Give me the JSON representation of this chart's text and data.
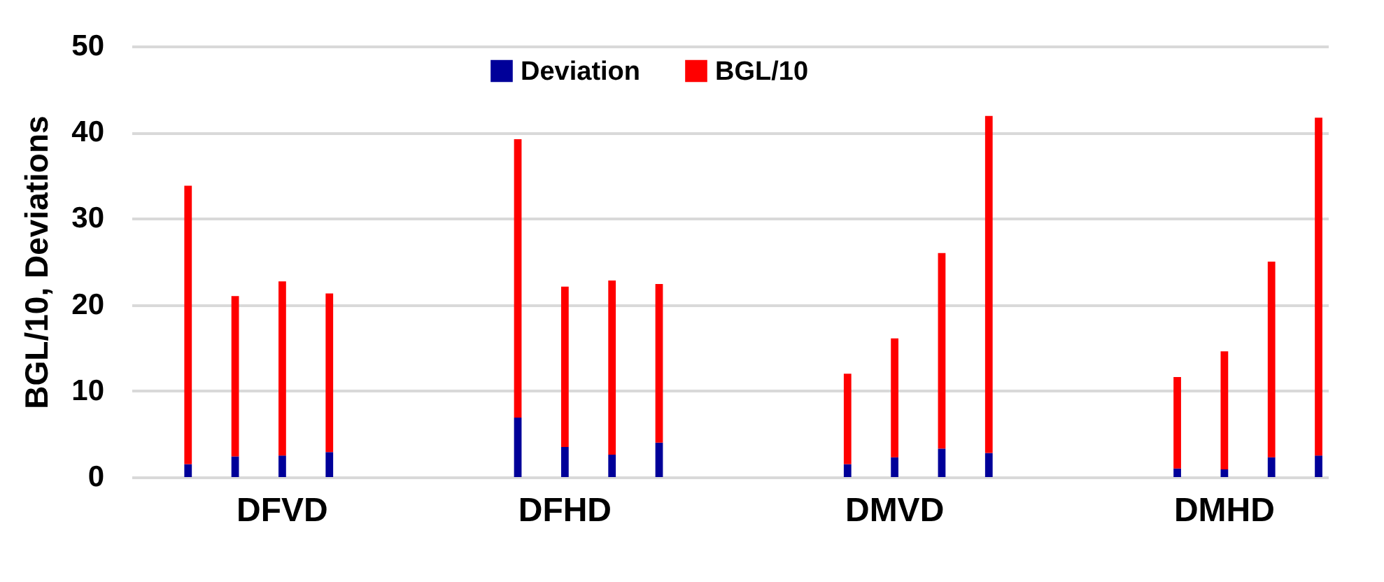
{
  "chart_data": {
    "type": "bar",
    "stacked": true,
    "ylabel": "BGL/10, Deviations",
    "categories": [
      null,
      null,
      null,
      "DFVD",
      null,
      null,
      null,
      null,
      null,
      "DFHD",
      null,
      null,
      null,
      null,
      null,
      null,
      "DMVD",
      null,
      null,
      null,
      null,
      null,
      null,
      "DMHD",
      null,
      null
    ],
    "series": [
      {
        "name": "Deviation",
        "color": "#000099",
        "values": [
          null,
          1.5,
          2.4,
          2.5,
          2.9,
          null,
          null,
          null,
          6.9,
          3.5,
          2.6,
          4.0,
          null,
          null,
          null,
          1.5,
          2.3,
          3.3,
          2.8,
          null,
          null,
          null,
          1.0,
          0.9,
          2.3,
          2.5
        ]
      },
      {
        "name": "BGL/10",
        "color": "#ff0000",
        "values": [
          null,
          32.3,
          18.6,
          20.2,
          18.4,
          null,
          null,
          null,
          32.3,
          18.6,
          20.2,
          18.4,
          null,
          null,
          null,
          10.5,
          13.8,
          22.7,
          39.1,
          null,
          null,
          null,
          10.6,
          13.7,
          22.7,
          39.2
        ]
      }
    ],
    "ylim": [
      0,
      50
    ],
    "yticks": [
      0,
      10,
      20,
      30,
      40,
      50
    ],
    "grid": "y",
    "legend": "top"
  }
}
